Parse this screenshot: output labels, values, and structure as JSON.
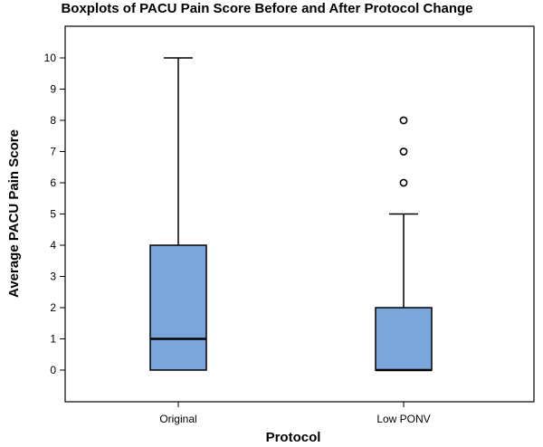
{
  "chart_data": {
    "type": "boxplot",
    "title": "Boxplots of PACU Pain Score Before and After Protocol Change",
    "xlabel": "Protocol",
    "ylabel": "Average PACU Pain Score",
    "ylim": [
      -1,
      11
    ],
    "yticks": [
      0,
      1,
      2,
      3,
      4,
      5,
      6,
      7,
      8,
      9,
      10
    ],
    "grid": false,
    "box_color": "#7aa6dc",
    "categories": [
      "Original",
      "Low PONV"
    ],
    "series": [
      {
        "category": "Original",
        "min": 0,
        "q1": 0,
        "median": 1,
        "q3": 4,
        "max": 10,
        "outliers": []
      },
      {
        "category": "Low PONV",
        "min": 0,
        "q1": 0,
        "median": 0,
        "q3": 2,
        "max": 5,
        "outliers": [
          6,
          7,
          8
        ]
      }
    ]
  }
}
